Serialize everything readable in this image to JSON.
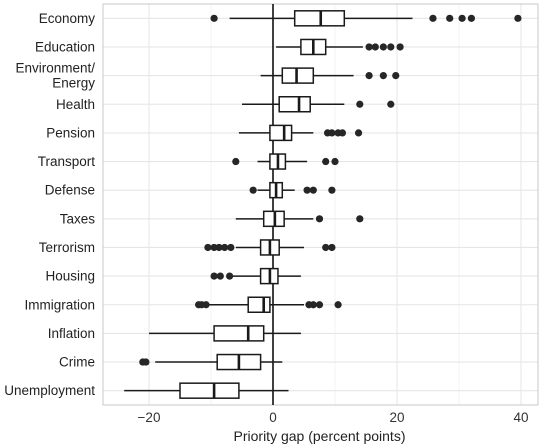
{
  "chart_data": {
    "type": "boxplot",
    "title": "",
    "xlabel": "Priority gap (percent points)",
    "ylabel": "",
    "xlim": [
      -27.5,
      42
    ],
    "xticks": [
      -20,
      0,
      20,
      40
    ],
    "xtick_labels": [
      "−20",
      "0",
      "20",
      "40"
    ],
    "grid": true,
    "reference_line_x": 0,
    "categories": [
      {
        "label_lines": [
          "Economy"
        ],
        "q1": 3.5,
        "median": 7.7,
        "q3": 11.5,
        "whisker_low": -7.0,
        "whisker_high": 22.5,
        "outliers": [
          -9.5,
          25.8,
          28.5,
          30.5,
          32.0,
          39.5
        ]
      },
      {
        "label_lines": [
          "Education"
        ],
        "q1": 4.5,
        "median": 6.5,
        "q3": 8.5,
        "whisker_low": 0.5,
        "whisker_high": 14.5,
        "outliers": [
          15.5,
          16.5,
          17.8,
          19.0,
          20.5
        ]
      },
      {
        "label_lines": [
          "Environment/",
          "Energy"
        ],
        "q1": 1.5,
        "median": 3.8,
        "q3": 6.5,
        "whisker_low": -2.0,
        "whisker_high": 13.0,
        "outliers": [
          15.5,
          17.8,
          19.8
        ]
      },
      {
        "label_lines": [
          "Health"
        ],
        "q1": 1.0,
        "median": 4.2,
        "q3": 6.0,
        "whisker_low": -5.0,
        "whisker_high": 11.5,
        "outliers": [
          14.0,
          19.0
        ]
      },
      {
        "label_lines": [
          "Pension"
        ],
        "q1": -0.5,
        "median": 1.8,
        "q3": 3.0,
        "whisker_low": -5.5,
        "whisker_high": 6.5,
        "outliers": [
          8.8,
          9.5,
          10.5,
          11.2,
          13.8
        ]
      },
      {
        "label_lines": [
          "Transport"
        ],
        "q1": -0.5,
        "median": 0.8,
        "q3": 2.0,
        "whisker_low": -2.5,
        "whisker_high": 5.5,
        "outliers": [
          -6.0,
          8.5,
          10.0
        ]
      },
      {
        "label_lines": [
          "Defense"
        ],
        "q1": -0.5,
        "median": 0.5,
        "q3": 1.5,
        "whisker_low": -2.5,
        "whisker_high": 3.5,
        "outliers": [
          -3.2,
          5.5,
          6.5,
          9.5
        ]
      },
      {
        "label_lines": [
          "Taxes"
        ],
        "q1": -1.5,
        "median": 0.3,
        "q3": 1.8,
        "whisker_low": -6.0,
        "whisker_high": 6.5,
        "outliers": [
          7.5,
          14.0
        ]
      },
      {
        "label_lines": [
          "Terrorism"
        ],
        "q1": -2.0,
        "median": -0.5,
        "q3": 1.0,
        "whisker_low": -6.0,
        "whisker_high": 5.0,
        "outliers": [
          -10.5,
          -9.5,
          -8.7,
          -7.8,
          -6.8,
          8.5,
          9.5
        ]
      },
      {
        "label_lines": [
          "Housing"
        ],
        "q1": -2.0,
        "median": -0.5,
        "q3": 0.8,
        "whisker_low": -6.5,
        "whisker_high": 4.5,
        "outliers": [
          -9.5,
          -8.5,
          -7.0
        ]
      },
      {
        "label_lines": [
          "Immigration"
        ],
        "q1": -4.0,
        "median": -1.5,
        "q3": -0.5,
        "whisker_low": -11.0,
        "whisker_high": 5.0,
        "outliers": [
          -12.0,
          -11.5,
          -10.8,
          5.8,
          6.5,
          7.5,
          10.5
        ]
      },
      {
        "label_lines": [
          "Inflation"
        ],
        "q1": -9.5,
        "median": -4.0,
        "q3": -1.5,
        "whisker_low": -20.0,
        "whisker_high": 4.5,
        "outliers": []
      },
      {
        "label_lines": [
          "Crime"
        ],
        "q1": -9.0,
        "median": -5.5,
        "q3": -2.0,
        "whisker_low": -19.0,
        "whisker_high": 1.5,
        "outliers": [
          -21.0,
          -20.5
        ]
      },
      {
        "label_lines": [
          "Unemployment"
        ],
        "q1": -15.0,
        "median": -9.5,
        "q3": -5.5,
        "whisker_low": -24.0,
        "whisker_high": 2.5,
        "outliers": []
      }
    ]
  },
  "colors": {
    "box_stroke": "#1a1a1a",
    "point_fill": "#262626",
    "grid": "#e6e6e6",
    "axis_text": "#333333"
  }
}
